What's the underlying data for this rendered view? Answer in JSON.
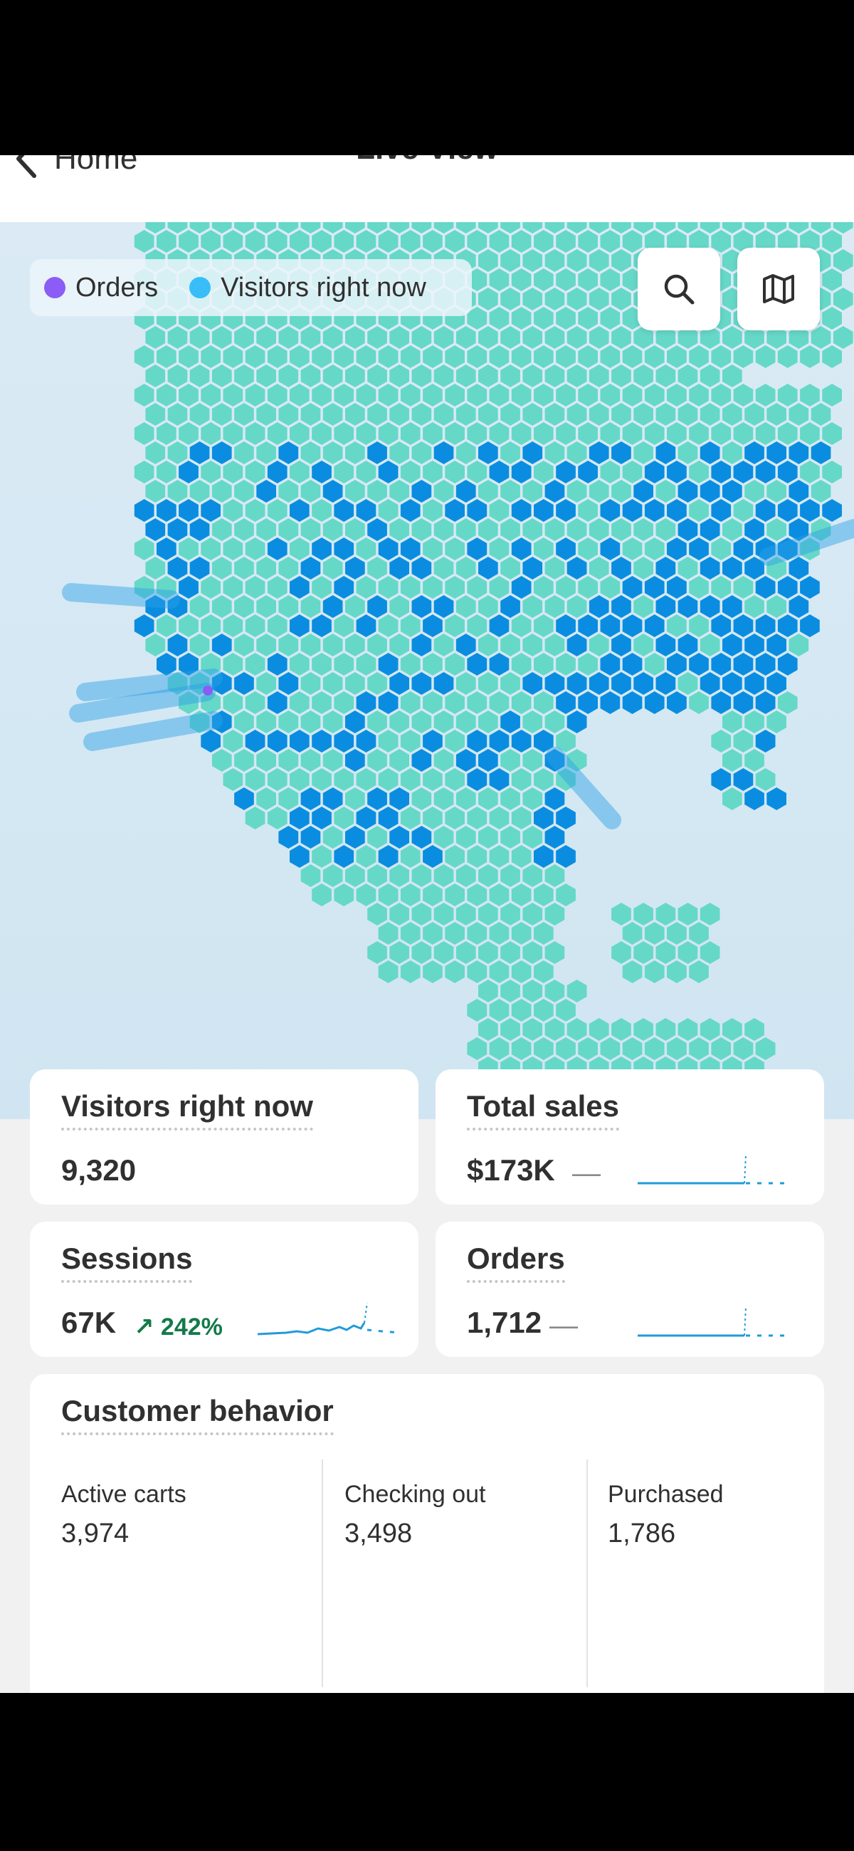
{
  "header": {
    "back_label": "Home",
    "title": "Live View"
  },
  "legend": {
    "items": [
      {
        "label": "Orders",
        "color": "#8b5cf6"
      },
      {
        "label": "Visitors right now",
        "color": "#38bdf8"
      }
    ]
  },
  "map_buttons": {
    "search": "search-icon",
    "map": "map-icon"
  },
  "metrics": {
    "visitors": {
      "label": "Visitors right now",
      "value": "9,320"
    },
    "total_sales": {
      "label": "Total sales",
      "value": "$173K",
      "change": "—"
    },
    "sessions": {
      "label": "Sessions",
      "value": "67K",
      "change": "↗ 242%"
    },
    "orders": {
      "label": "Orders",
      "value": "1,712",
      "change": "—"
    }
  },
  "customer_behavior": {
    "title": "Customer behavior",
    "columns": [
      {
        "label": "Active carts",
        "value": "3,974"
      },
      {
        "label": "Checking out",
        "value": "3,498"
      },
      {
        "label": "Purchased",
        "value": "1,786"
      }
    ]
  },
  "colors": {
    "land": "#66d8c8",
    "visitor": "#0a8de0",
    "accent": "#2f5fe0"
  }
}
